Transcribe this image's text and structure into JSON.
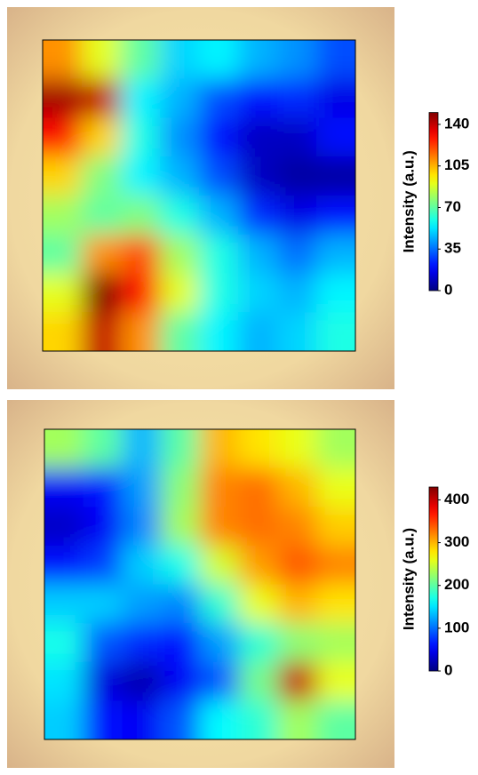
{
  "chart_data": [
    {
      "type": "heatmap",
      "colormap": "jet",
      "colorbar_label": "Intensity (a.u.)",
      "zlim": [
        0,
        150
      ],
      "zticks": [
        0,
        35,
        70,
        105,
        140
      ],
      "z": [
        [
          110,
          90,
          70,
          50,
          55,
          45,
          40,
          30
        ],
        [
          145,
          140,
          55,
          45,
          30,
          20,
          25,
          15
        ],
        [
          130,
          100,
          60,
          40,
          20,
          10,
          10,
          20
        ],
        [
          100,
          75,
          55,
          45,
          30,
          10,
          5,
          5
        ],
        [
          80,
          70,
          75,
          60,
          45,
          25,
          15,
          20
        ],
        [
          70,
          110,
          120,
          80,
          60,
          45,
          35,
          45
        ],
        [
          90,
          150,
          130,
          90,
          60,
          50,
          45,
          55
        ],
        [
          100,
          140,
          110,
          70,
          55,
          45,
          50,
          60
        ]
      ]
    },
    {
      "type": "heatmap",
      "colormap": "jet",
      "colorbar_label": "Intensity (a.u.)",
      "zlim": [
        0,
        430
      ],
      "zticks": [
        0,
        100,
        200,
        300,
        400
      ],
      "z": [
        [
          230,
          200,
          130,
          200,
          300,
          280,
          260,
          230
        ],
        [
          50,
          60,
          120,
          220,
          320,
          330,
          300,
          260
        ],
        [
          30,
          50,
          110,
          230,
          320,
          330,
          320,
          290
        ],
        [
          60,
          80,
          140,
          170,
          250,
          310,
          340,
          320
        ],
        [
          140,
          140,
          120,
          110,
          180,
          260,
          300,
          280
        ],
        [
          170,
          90,
          70,
          60,
          120,
          180,
          220,
          230
        ],
        [
          150,
          40,
          20,
          50,
          90,
          210,
          400,
          260
        ],
        [
          140,
          60,
          50,
          90,
          160,
          180,
          230,
          200
        ]
      ]
    }
  ]
}
